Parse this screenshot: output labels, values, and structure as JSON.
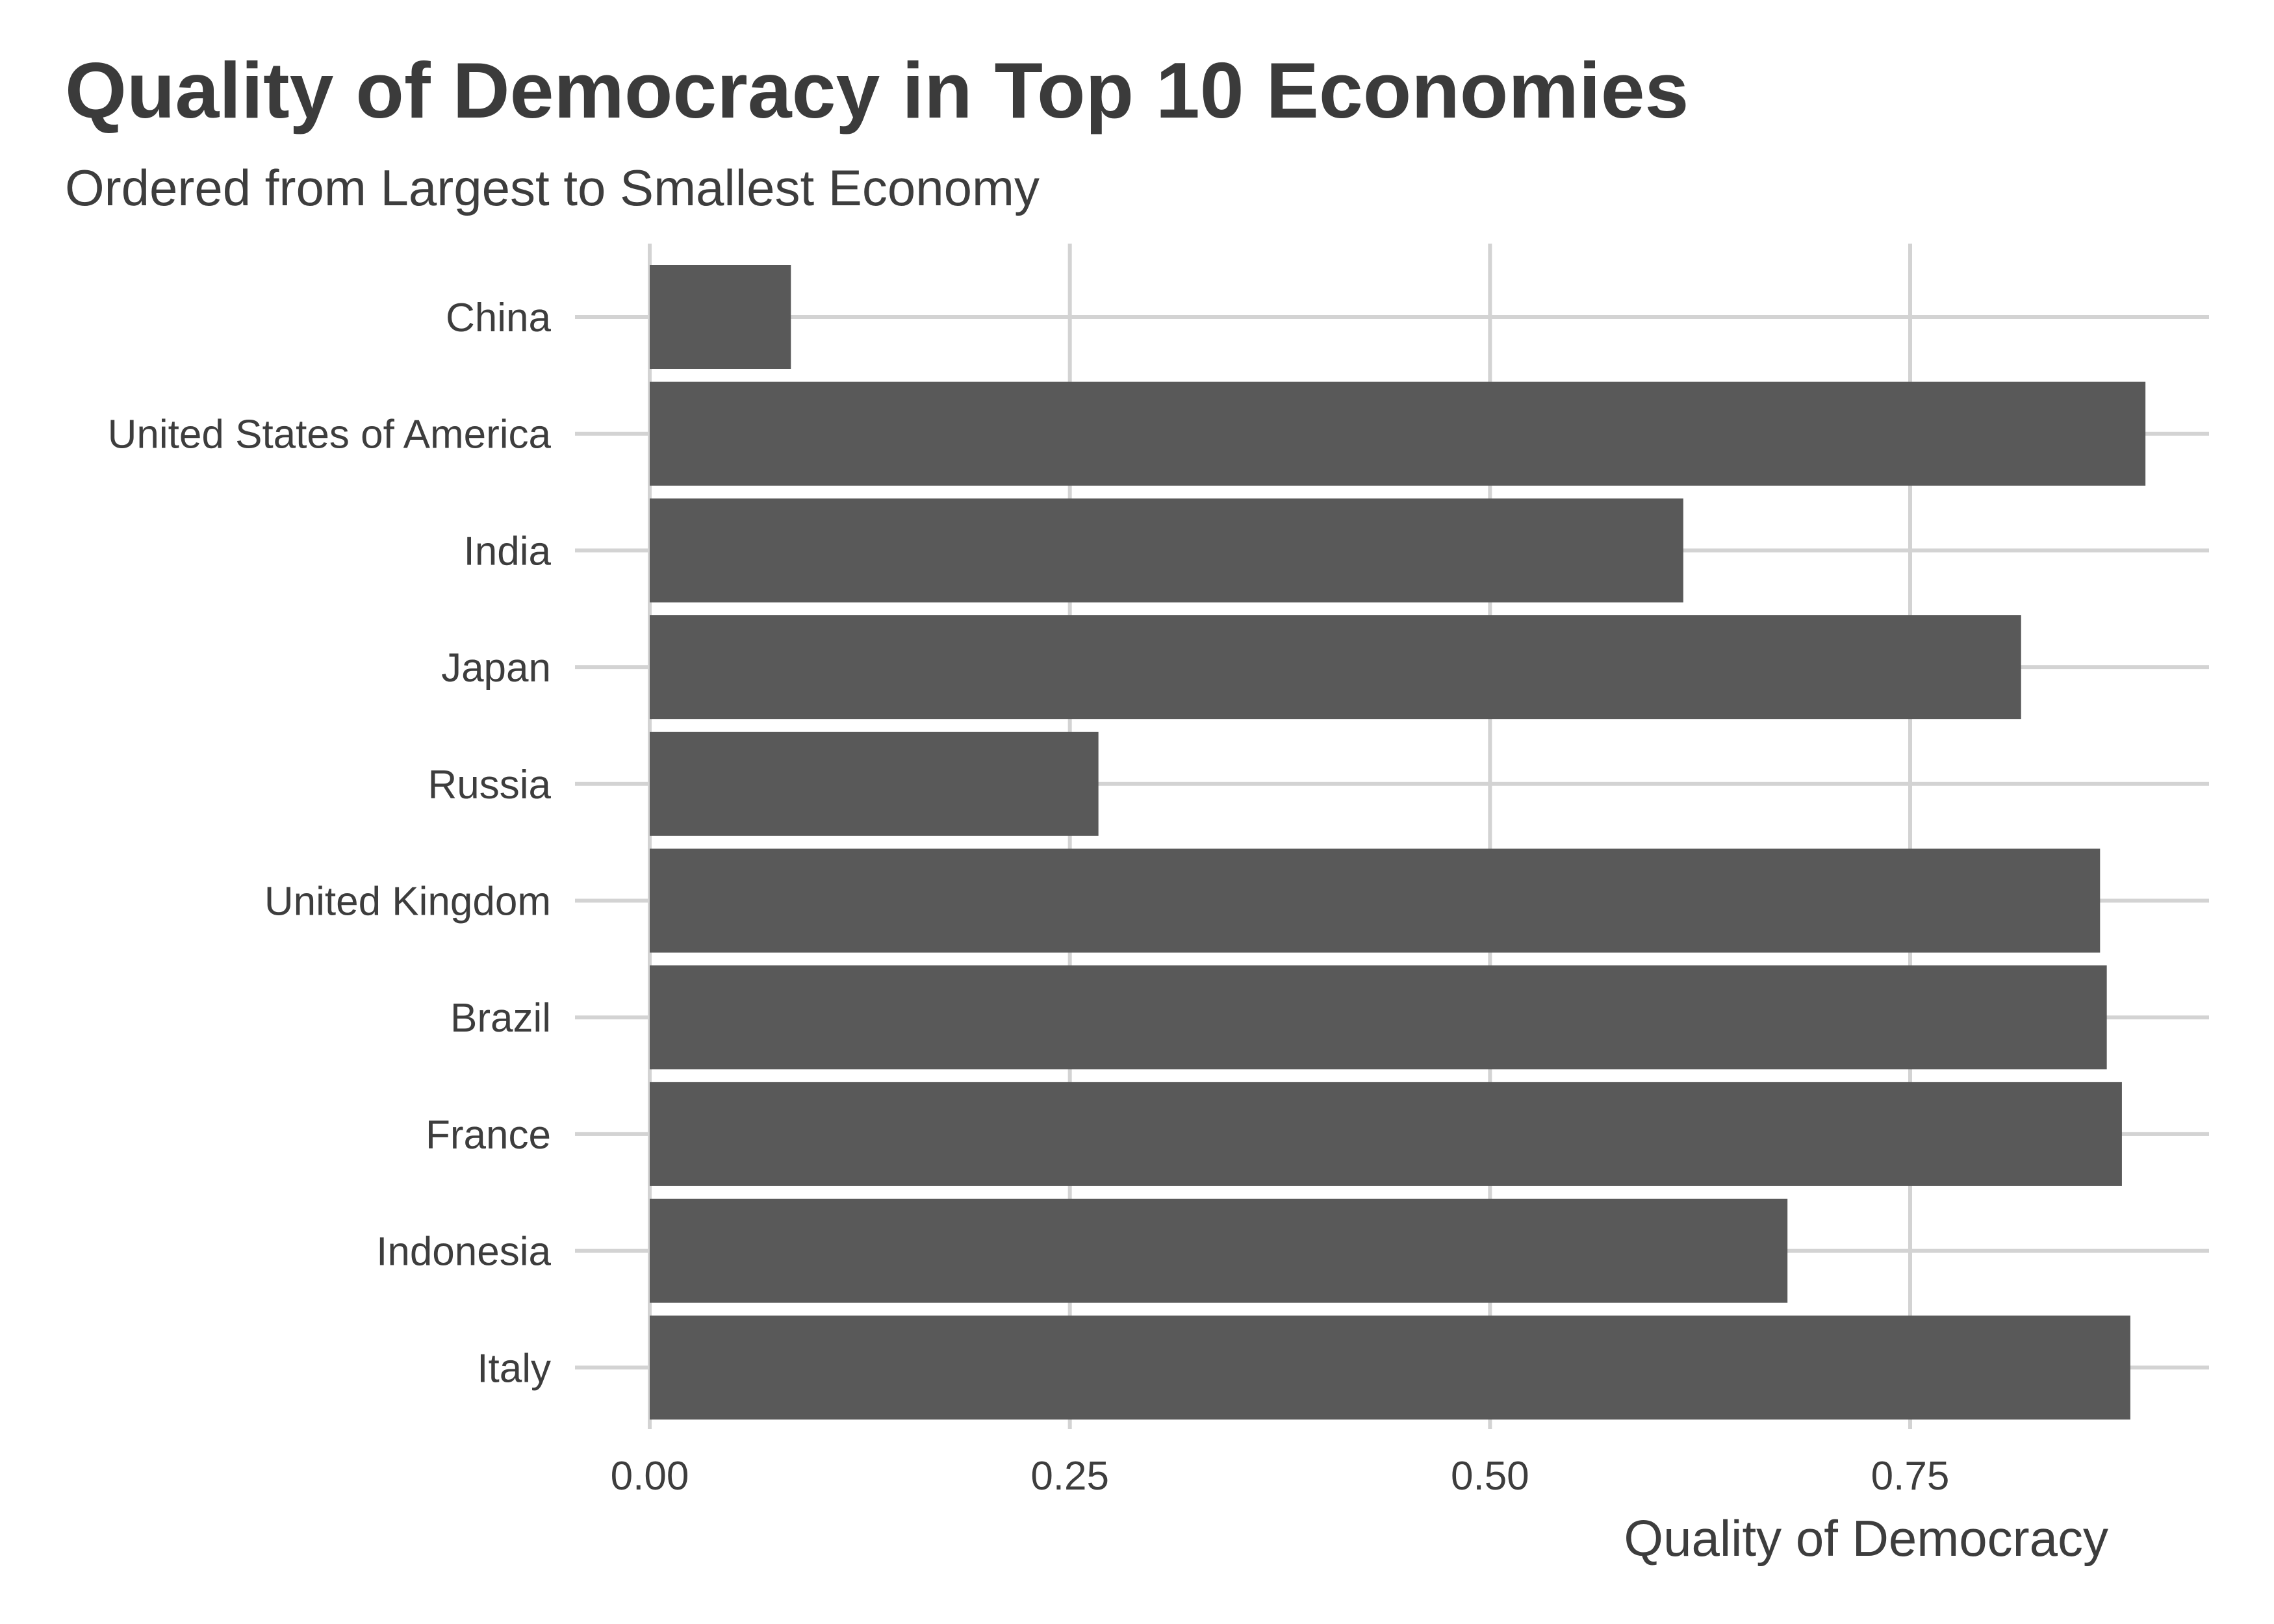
{
  "chart_data": {
    "type": "bar",
    "orientation": "horizontal",
    "title": "Quality of Democracy in Top 10 Economies",
    "subtitle": "Ordered from Largest to Smallest Economy",
    "xlabel": "Quality of Democracy",
    "ylabel": "",
    "categories": [
      "China",
      "United States of America",
      "India",
      "Japan",
      "Russia",
      "United Kingdom",
      "Brazil",
      "France",
      "Indonesia",
      "Italy"
    ],
    "values": [
      0.084,
      0.89,
      0.615,
      0.816,
      0.267,
      0.863,
      0.867,
      0.876,
      0.677,
      0.881
    ],
    "xlim": [
      0,
      0.93
    ],
    "x_ticks": [
      "0.00",
      "0.25",
      "0.50",
      "0.75"
    ],
    "x_tick_values": [
      0,
      0.25,
      0.5,
      0.75
    ],
    "grid": true,
    "legend": "none",
    "colors": {
      "bar": "#595959",
      "grid": "#d3d3d3",
      "text": "#3d3d3d"
    }
  }
}
